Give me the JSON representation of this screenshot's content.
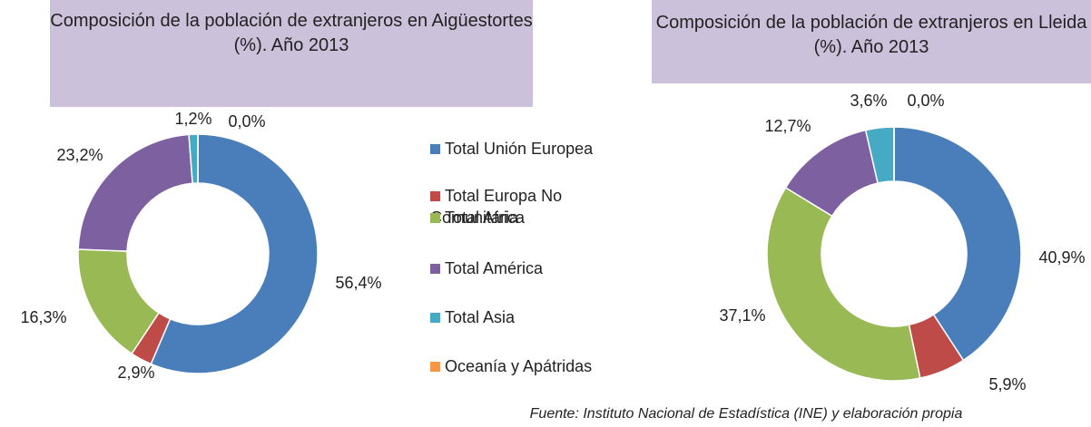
{
  "chart_data": [
    {
      "type": "donut",
      "title": "Composición de la población de extranjeros  en Aigüestortes (%). Año 2013",
      "values": [
        56.4,
        2.9,
        16.3,
        23.2,
        1.2,
        0.0
      ],
      "value_labels": [
        "56,4%",
        "2,9%",
        "16,3%",
        "23,2%",
        "1,2%",
        "0,0%"
      ]
    },
    {
      "type": "donut",
      "title": "Composición de la población de extranjeros en Lleida (%). Año 2013",
      "values": [
        40.9,
        5.9,
        37.1,
        12.7,
        3.6,
        0.0
      ],
      "value_labels": [
        "40,9%",
        "5,9%",
        "37,1%",
        "12,7%",
        "3,6%",
        "0,0%"
      ]
    }
  ],
  "legend": {
    "categories": [
      "Total Unión Europea",
      "Total Europa No Comunitaria",
      "Total Africa",
      "Total América",
      "Total Asia",
      "Oceanía y Apátridas"
    ],
    "colors": [
      "#4a7ebb",
      "#be4b48",
      "#98b954",
      "#7d60a0",
      "#46aac5",
      "#f79646"
    ]
  },
  "source": "Fuente: Instituto Nacional de Estadística (INE) y elaboración propia"
}
